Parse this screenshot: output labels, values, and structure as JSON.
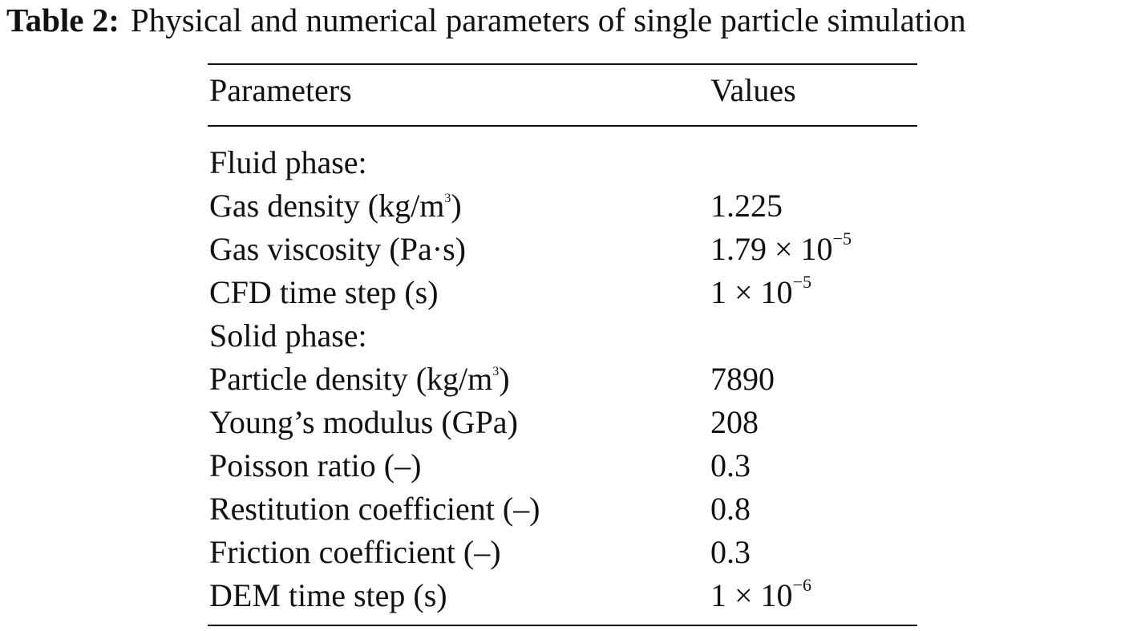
{
  "caption": {
    "label": "Table 2:",
    "title": "Physical and numerical parameters of single particle simulation"
  },
  "table": {
    "headers": {
      "parameter": "Parameters",
      "value": "Values"
    },
    "rows": [
      {
        "parameter": "Fluid phase:",
        "unit_sup": "",
        "unit_after": "",
        "value": "",
        "exponent": ""
      },
      {
        "parameter": "Gas density (kg/m",
        "unit_sup": "3",
        "unit_after": ")",
        "value": "1.225",
        "exponent": ""
      },
      {
        "parameter": "Gas viscosity (Pa·s)",
        "unit_sup": "",
        "unit_after": "",
        "value": "1.79 × 10",
        "exponent": "−5"
      },
      {
        "parameter": "CFD time step (s)",
        "unit_sup": "",
        "unit_after": "",
        "value": "1 × 10",
        "exponent": "−5"
      },
      {
        "parameter": "Solid phase:",
        "unit_sup": "",
        "unit_after": "",
        "value": "",
        "exponent": ""
      },
      {
        "parameter": "Particle density (kg/m",
        "unit_sup": "3",
        "unit_after": ")",
        "value": "7890",
        "exponent": ""
      },
      {
        "parameter": "Young’s modulus (GPa)",
        "unit_sup": "",
        "unit_after": "",
        "value": "208",
        "exponent": ""
      },
      {
        "parameter": "Poisson ratio (–)",
        "unit_sup": "",
        "unit_after": "",
        "value": "0.3",
        "exponent": ""
      },
      {
        "parameter": "Restitution coefficient (–)",
        "unit_sup": "",
        "unit_after": "",
        "value": "0.8",
        "exponent": ""
      },
      {
        "parameter": "Friction coefficient (–)",
        "unit_sup": "",
        "unit_after": "",
        "value": "0.3",
        "exponent": ""
      },
      {
        "parameter": "DEM time step (s)",
        "unit_sup": "",
        "unit_after": "",
        "value": "1 × 10",
        "exponent": "−6"
      }
    ]
  }
}
